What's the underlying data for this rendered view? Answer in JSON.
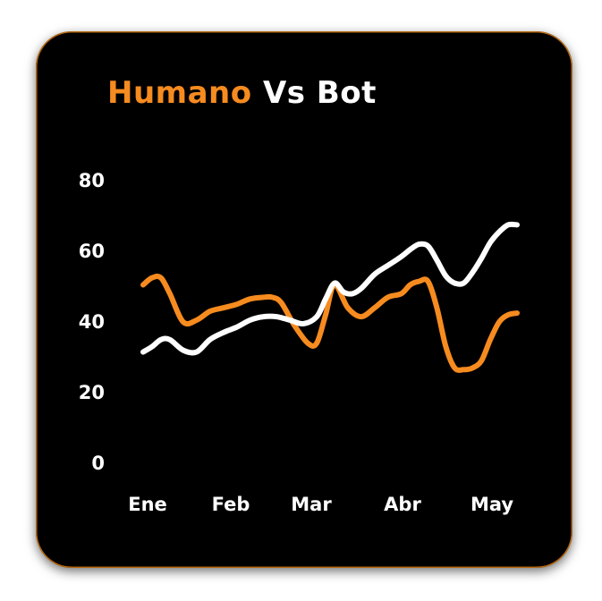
{
  "title": {
    "part1": "Humano",
    "part2": "Vs Bot"
  },
  "colors": {
    "background": "#000000",
    "accent": "#F68B1F",
    "text": "#FFFFFF"
  },
  "chart_data": {
    "type": "line",
    "categories": [
      "Ene",
      "Feb",
      "Mar",
      "Abr",
      "May"
    ],
    "yticks": [
      "0",
      "20",
      "40",
      "60",
      "80"
    ],
    "ylim": [
      0,
      80
    ],
    "xlim": [
      0,
      4.2
    ],
    "grid": false,
    "series": [
      {
        "color": "#F68B1F",
        "x": [
          0,
          0.1,
          0.2,
          0.3,
          0.45,
          0.6,
          0.75,
          0.9,
          1.05,
          1.2,
          1.35,
          1.45,
          1.55,
          1.7,
          1.85,
          1.95,
          2.05,
          2.15,
          2.3,
          2.45,
          2.6,
          2.75,
          2.9,
          3.0,
          3.1,
          3.2,
          3.3,
          3.4,
          3.5,
          3.6,
          3.7,
          3.8,
          3.9,
          4.0,
          4.1,
          4.2
        ],
        "values": [
          50.5,
          52.5,
          52.5,
          48,
          40,
          40.5,
          43,
          44,
          45,
          46.5,
          47,
          47,
          45.5,
          39,
          34,
          34,
          42,
          50.5,
          44,
          41.5,
          44,
          47,
          48,
          50.5,
          51.5,
          51.5,
          44,
          33,
          27,
          26.5,
          27,
          29,
          35,
          40,
          42,
          42.5
        ]
      },
      {
        "color": "#FFFFFF",
        "x": [
          0,
          0.1,
          0.2,
          0.3,
          0.45,
          0.6,
          0.75,
          0.9,
          1.05,
          1.2,
          1.35,
          1.5,
          1.65,
          1.8,
          1.95,
          2.05,
          2.15,
          2.25,
          2.35,
          2.45,
          2.6,
          2.75,
          2.9,
          3.0,
          3.1,
          3.2,
          3.3,
          3.4,
          3.5,
          3.6,
          3.7,
          3.8,
          3.9,
          4.0,
          4.1,
          4.2
        ],
        "values": [
          31.5,
          33,
          35,
          35,
          32,
          31.5,
          35,
          37,
          38.5,
          40.5,
          41.5,
          41.5,
          40.5,
          39.5,
          41.5,
          46.5,
          51,
          48.5,
          48,
          49.5,
          53.5,
          56,
          58.5,
          60.5,
          62,
          61.5,
          57.5,
          53,
          51,
          51,
          54,
          58,
          62.5,
          65.5,
          67.5,
          67.5
        ]
      }
    ]
  }
}
